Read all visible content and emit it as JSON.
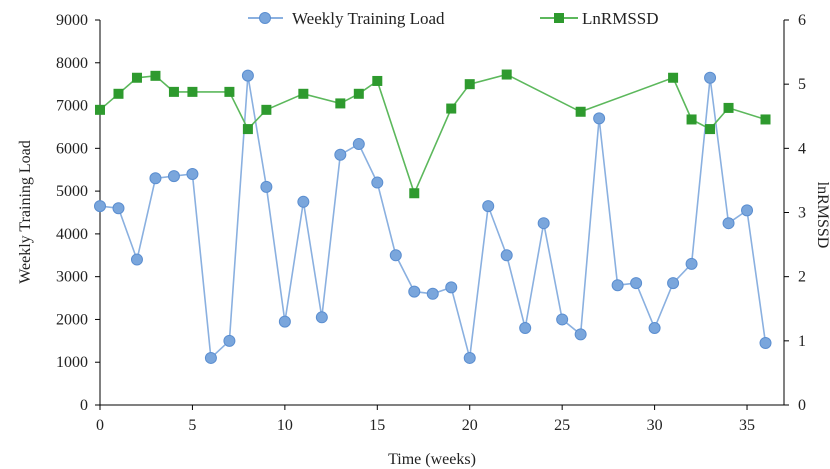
{
  "chart_data": {
    "type": "line",
    "title": "",
    "xlabel": "Time (weeks)",
    "ylabel": "Weekly Training Load",
    "y2label": "lnRMSSD",
    "xlim": [
      0,
      37
    ],
    "ylim": [
      0,
      9000
    ],
    "y2lim": [
      0,
      6
    ],
    "x_ticks": [
      0,
      5,
      10,
      15,
      20,
      25,
      30,
      35
    ],
    "y_ticks": [
      0,
      1000,
      2000,
      3000,
      4000,
      5000,
      6000,
      7000,
      8000,
      9000
    ],
    "y2_ticks": [
      0,
      1,
      2,
      3,
      4,
      5,
      6
    ],
    "grid": false,
    "legend_position": "top",
    "series": [
      {
        "name": "Weekly Training Load",
        "axis": "left",
        "color": "#7aa6dc",
        "line_color": "#8ab0e0",
        "marker": "circle",
        "x": [
          0,
          1,
          2,
          3,
          4,
          5,
          6,
          7,
          8,
          9,
          10,
          11,
          12,
          13,
          14,
          15,
          16,
          17,
          18,
          19,
          20,
          21,
          22,
          23,
          24,
          25,
          26,
          27,
          28,
          29,
          30,
          31,
          32,
          33,
          34,
          35,
          36
        ],
        "values": [
          4650,
          4600,
          3400,
          5300,
          5350,
          5400,
          1100,
          1500,
          7700,
          5100,
          1950,
          4750,
          2050,
          5850,
          6100,
          5200,
          3500,
          2650,
          2600,
          2750,
          1100,
          4650,
          3500,
          1800,
          4250,
          2000,
          1650,
          6700,
          2800,
          2850,
          1800,
          2850,
          3300,
          7650,
          4250,
          4550,
          1450
        ]
      },
      {
        "name": "LnRMSSD",
        "axis": "right",
        "color": "#2e9a2e",
        "line_color": "#5cb85c",
        "marker": "square",
        "x": [
          0,
          1,
          2,
          3,
          4,
          5,
          7,
          8,
          9,
          11,
          13,
          14,
          15,
          17,
          19,
          20,
          22,
          26,
          31,
          32,
          33,
          34,
          36
        ],
        "values": [
          4.6,
          4.85,
          5.1,
          5.13,
          4.88,
          4.88,
          4.88,
          4.3,
          4.6,
          4.85,
          4.7,
          4.85,
          5.05,
          3.3,
          4.62,
          5.0,
          5.15,
          4.57,
          5.1,
          4.45,
          4.3,
          4.63,
          4.45
        ]
      }
    ]
  }
}
